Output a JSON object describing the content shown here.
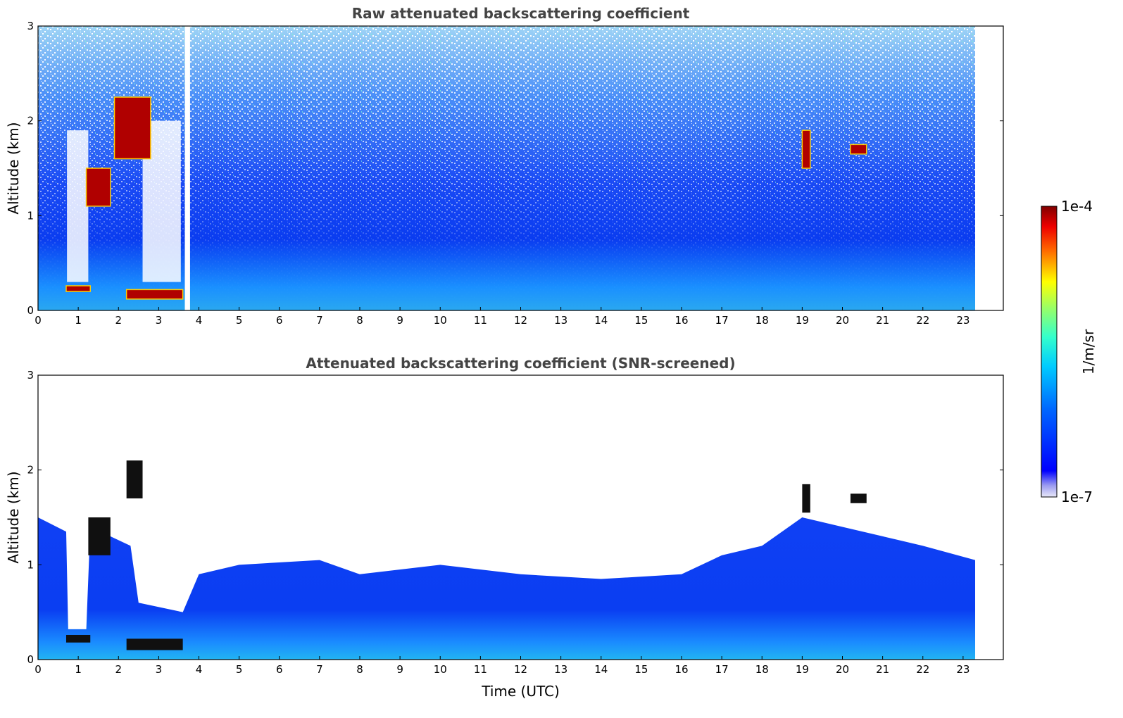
{
  "chart_data": [
    {
      "type": "heatmap",
      "title": "Raw attenuated backscattering coefficient",
      "xlabel": "",
      "ylabel": "Altitude (km)",
      "xlim": [
        0,
        24
      ],
      "ylim": [
        0,
        3
      ],
      "xticks": [
        "0",
        "1",
        "2",
        "3",
        "4",
        "5",
        "6",
        "7",
        "8",
        "9",
        "10",
        "11",
        "12",
        "13",
        "14",
        "15",
        "16",
        "17",
        "18",
        "19",
        "20",
        "21",
        "22",
        "23"
      ],
      "yticks": [
        "0",
        "1",
        "2",
        "3"
      ],
      "data_end_time": 23.3,
      "screened": false,
      "features": [
        {
          "label": "aerosol layer",
          "x": [
            0.7,
            1.3
          ],
          "y": [
            0.2,
            0.26
          ],
          "level": "high"
        },
        {
          "label": "aerosol layer",
          "x": [
            2.2,
            3.6
          ],
          "y": [
            0.12,
            0.22
          ],
          "level": "high"
        },
        {
          "label": "cloud",
          "x": [
            1.9,
            2.8
          ],
          "y": [
            1.6,
            2.25
          ],
          "level": "high"
        },
        {
          "label": "cloud",
          "x": [
            1.2,
            1.8
          ],
          "y": [
            1.1,
            1.5
          ],
          "level": "high"
        },
        {
          "label": "cloud",
          "x": [
            19.0,
            19.2
          ],
          "y": [
            1.5,
            1.9
          ],
          "level": "high"
        },
        {
          "label": "cloud",
          "x": [
            20.2,
            20.6
          ],
          "y": [
            1.65,
            1.75
          ],
          "level": "high"
        },
        {
          "label": "data gap",
          "x": [
            3.65,
            3.78
          ],
          "y": [
            0,
            3
          ],
          "level": "none"
        }
      ]
    },
    {
      "type": "heatmap",
      "title": "Attenuated backscattering coefficient (SNR-screened)",
      "xlabel": "Time (UTC)",
      "ylabel": "Altitude (km)",
      "xlim": [
        0,
        24
      ],
      "ylim": [
        0,
        3
      ],
      "xticks": [
        "0",
        "1",
        "2",
        "3",
        "4",
        "5",
        "6",
        "7",
        "8",
        "9",
        "10",
        "11",
        "12",
        "13",
        "14",
        "15",
        "16",
        "17",
        "18",
        "19",
        "20",
        "21",
        "22",
        "23"
      ],
      "yticks": [
        "0",
        "1",
        "2",
        "3"
      ],
      "data_end_time": 23.3,
      "screened": true,
      "signal_top_km": [
        [
          0,
          1.5
        ],
        [
          0.7,
          1.35
        ],
        [
          0.75,
          0.32
        ],
        [
          1.2,
          0.32
        ],
        [
          1.3,
          1.4
        ],
        [
          2.3,
          1.2
        ],
        [
          2.5,
          0.6
        ],
        [
          3.6,
          0.5
        ],
        [
          4.0,
          0.9
        ],
        [
          5,
          1.0
        ],
        [
          7,
          1.05
        ],
        [
          8,
          0.9
        ],
        [
          10,
          1.0
        ],
        [
          12,
          0.9
        ],
        [
          14,
          0.85
        ],
        [
          16,
          0.9
        ],
        [
          17,
          1.1
        ],
        [
          18,
          1.2
        ],
        [
          19,
          1.5
        ],
        [
          20,
          1.4
        ],
        [
          21,
          1.3
        ],
        [
          22,
          1.2
        ],
        [
          23.3,
          1.05
        ]
      ]
    }
  ],
  "colorbar": {
    "label": "1/m/sr",
    "max_label": "1e-4",
    "min_label": "1e-7",
    "colormap": "jet",
    "scale": "log"
  }
}
